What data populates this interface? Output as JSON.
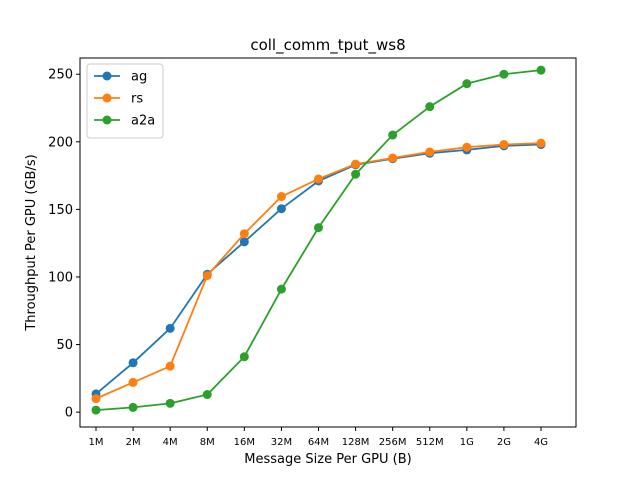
{
  "chart_data": {
    "type": "line",
    "title": "coll_comm_tput_ws8",
    "xlabel": "Message Size Per GPU (B)",
    "ylabel": "Throughput Per GPU (GB/s)",
    "categories": [
      "1M",
      "2M",
      "4M",
      "8M",
      "16M",
      "32M",
      "64M",
      "128M",
      "256M",
      "512M",
      "1G",
      "2G",
      "4G"
    ],
    "ylim": [
      -11,
      262
    ],
    "yticks": [
      0,
      50,
      100,
      150,
      200,
      250
    ],
    "grid": false,
    "legend_position": "top-left",
    "series": [
      {
        "name": "ag",
        "color": "#1f77b4",
        "values": [
          13.5,
          36.5,
          62,
          102,
          126,
          150.5,
          171,
          183,
          187.5,
          191.5,
          194,
          197,
          198
        ]
      },
      {
        "name": "rs",
        "color": "#ff7f0e",
        "values": [
          10,
          22,
          34,
          101,
          132,
          159.5,
          172.5,
          183.5,
          188,
          192.5,
          196,
          198,
          199
        ]
      },
      {
        "name": "a2a",
        "color": "#2ca02c",
        "values": [
          1.5,
          3.5,
          6.5,
          13,
          41,
          91,
          136.5,
          176,
          205,
          226,
          243,
          250,
          253
        ]
      }
    ]
  }
}
